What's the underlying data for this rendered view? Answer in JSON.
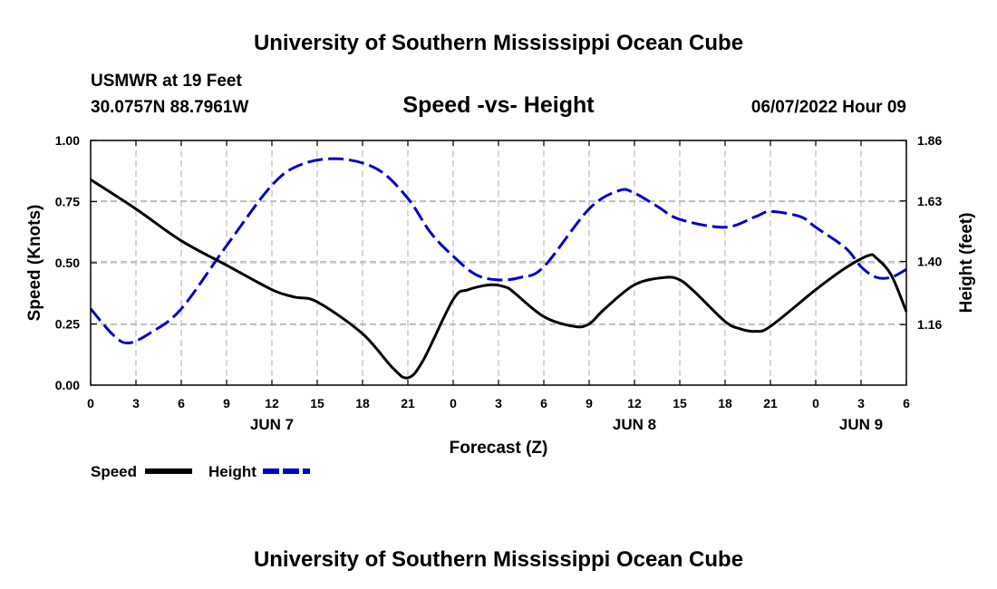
{
  "header": {
    "title": "University of Southern Mississippi Ocean Cube",
    "station": "USMWR at 19 Feet",
    "coords": "30.0757N  88.7961W",
    "subtitle": "Speed -vs- Height",
    "datetime": "06/07/2022 Hour 09"
  },
  "footer": {
    "title": "University of Southern Mississippi Ocean Cube"
  },
  "legend": {
    "speed_label": "Speed",
    "height_label": "Height"
  },
  "chart_data": {
    "type": "line",
    "title": "Speed -vs- Height",
    "xlabel": "Forecast (Z)",
    "ylabel": "Speed (Knots)",
    "y2label": "Height (feet)",
    "xlim": [
      0,
      54
    ],
    "ylim": [
      0,
      1.0
    ],
    "y2lim": [
      0.93,
      1.86
    ],
    "x_ticks": [
      0,
      3,
      6,
      9,
      12,
      15,
      18,
      21,
      24,
      27,
      30,
      33,
      36,
      39,
      42,
      45,
      48,
      51,
      54
    ],
    "x_tick_labels": [
      "0",
      "3",
      "6",
      "9",
      "12",
      "15",
      "18",
      "21",
      "0",
      "3",
      "6",
      "9",
      "12",
      "15",
      "18",
      "21",
      "0",
      "3",
      "6"
    ],
    "day_labels": [
      {
        "x": 12,
        "label": "JUN 7"
      },
      {
        "x": 36,
        "label": "JUN 8"
      },
      {
        "x": 51,
        "label": "JUN 9"
      }
    ],
    "y_ticks": [
      0.0,
      0.25,
      0.5,
      0.75,
      1.0
    ],
    "y_tick_labels": [
      "0.00",
      "0.25",
      "0.50",
      "0.75",
      "1.00"
    ],
    "y2_ticks": [
      1.16,
      1.4,
      1.63,
      1.86
    ],
    "y2_tick_labels": [
      "1.16",
      "1.40",
      "1.63",
      "1.86"
    ],
    "grid": true,
    "series": [
      {
        "name": "Speed",
        "axis": "left",
        "color": "#000000",
        "dash": "solid",
        "x": [
          0,
          3,
          6,
          9,
          12,
          13.5,
          15,
          18,
          20,
          21,
          22,
          24,
          25,
          26.5,
          27.5,
          28,
          30,
          32,
          33,
          34,
          36,
          38,
          39,
          40,
          42,
          43,
          44,
          45,
          48,
          50,
          51.5,
          52,
          53,
          54
        ],
        "values": [
          0.84,
          0.72,
          0.59,
          0.49,
          0.39,
          0.36,
          0.34,
          0.21,
          0.07,
          0.03,
          0.1,
          0.35,
          0.39,
          0.41,
          0.4,
          0.38,
          0.28,
          0.24,
          0.25,
          0.31,
          0.41,
          0.44,
          0.43,
          0.38,
          0.26,
          0.23,
          0.22,
          0.24,
          0.39,
          0.48,
          0.53,
          0.52,
          0.45,
          0.3
        ]
      },
      {
        "name": "Height",
        "axis": "right",
        "color": "#0000cc",
        "dash": "dashed",
        "x": [
          0,
          1.5,
          2.5,
          4,
          6,
          9,
          12,
          14,
          16.5,
          19,
          21,
          22.5,
          24,
          25.5,
          27,
          28.5,
          30,
          33,
          35,
          36,
          37.5,
          39,
          42,
          44,
          45,
          47,
          48,
          50,
          51,
          52,
          53,
          54
        ],
        "values": [
          1.22,
          1.12,
          1.09,
          1.13,
          1.22,
          1.46,
          1.69,
          1.77,
          1.79,
          1.75,
          1.64,
          1.51,
          1.42,
          1.35,
          1.33,
          1.34,
          1.38,
          1.6,
          1.67,
          1.66,
          1.61,
          1.56,
          1.53,
          1.57,
          1.59,
          1.57,
          1.53,
          1.45,
          1.38,
          1.34,
          1.34,
          1.37
        ]
      }
    ]
  }
}
